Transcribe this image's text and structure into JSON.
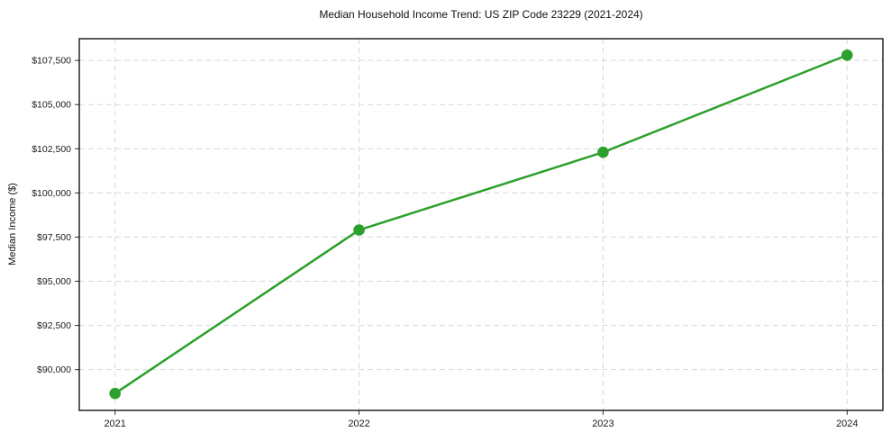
{
  "chart_data": {
    "type": "line",
    "title": "Median Household Income Trend: US ZIP Code 23229 (2021-2024)",
    "xlabel": "",
    "ylabel": "Median Income ($)",
    "categories": [
      "2021",
      "2022",
      "2023",
      "2024"
    ],
    "values": [
      88650,
      97900,
      102300,
      107800
    ],
    "y_ticks": {
      "values": [
        90000,
        92500,
        95000,
        97500,
        100000,
        102500,
        105000,
        107500
      ],
      "labels": [
        "$90,000",
        "$92,500",
        "$95,000",
        "$97,500",
        "$100,000",
        "$102,500",
        "$105,000",
        "$107,500"
      ]
    },
    "ylim": [
      87690,
      108730
    ],
    "grid": "dashed-both-axes",
    "legend_position": "none",
    "colors": {
      "line": "#2ca02c",
      "marker": "#2ca02c",
      "gridline": "#d8d8d8",
      "axis_border": "#000000",
      "tick_text": "#1a1a1a"
    }
  }
}
